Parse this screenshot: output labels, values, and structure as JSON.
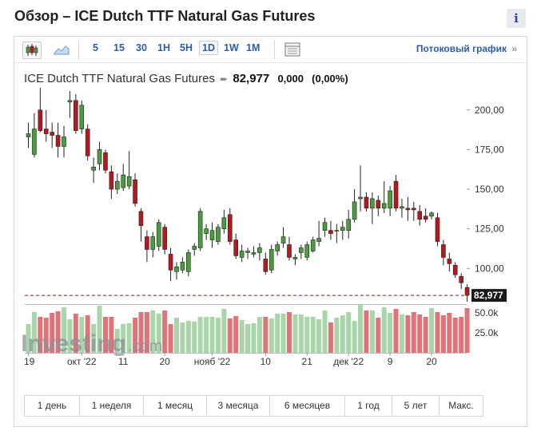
{
  "page": {
    "title": "Обзор – ICE Dutch TTF Natural Gas Futures",
    "info_label": "i"
  },
  "toolbar": {
    "intervals": [
      "5",
      "15",
      "30",
      "1H",
      "5H",
      "1D",
      "1W",
      "1M"
    ],
    "active_interval": "1D",
    "streaming_label": "Потоковый график"
  },
  "quote": {
    "name": "ICE Dutch TTF Natural Gas Futures",
    "last": "82,977",
    "change": "0,000",
    "change_pct": "(0,00%)"
  },
  "watermark": {
    "brand": "Investing",
    "suffix": ".com"
  },
  "ranges": [
    "1 день",
    "1 неделя",
    "1 месяц",
    "3 месяца",
    "6 месяцев",
    "1 год",
    "5 лет",
    "Макс."
  ],
  "colors": {
    "up": "#4a9c3c",
    "down": "#b5191f",
    "vol_up": "#a8d6a8",
    "vol_down": "#e07378",
    "accent": "#2a5db0"
  },
  "chart_data": {
    "type": "candlestick",
    "price_axis": {
      "ylim": [
        78,
        215
      ],
      "ticks": [
        100,
        125,
        150,
        175,
        200
      ],
      "tick_labels": [
        "100,00",
        "125,00",
        "150,00",
        "175,00",
        "200,00"
      ]
    },
    "volume_axis": {
      "ylim": [
        0,
        62
      ],
      "ticks": [
        25,
        50
      ],
      "tick_labels": [
        "25.0k",
        "50.0k"
      ]
    },
    "last_price": 82.977,
    "last_price_label": "82,977",
    "x_labels": [
      {
        "index": 0,
        "label": "19"
      },
      {
        "index": 9,
        "label": "окт '22"
      },
      {
        "index": 16,
        "label": "11"
      },
      {
        "index": 23,
        "label": "20"
      },
      {
        "index": 31,
        "label": "нояб '22"
      },
      {
        "index": 40,
        "label": "10"
      },
      {
        "index": 47,
        "label": "21"
      },
      {
        "index": 54,
        "label": "дек '22"
      },
      {
        "index": 61,
        "label": "9"
      },
      {
        "index": 68,
        "label": "20"
      }
    ],
    "candles": [
      {
        "o": 183,
        "h": 192,
        "l": 176,
        "c": 185,
        "v": 36
      },
      {
        "o": 172,
        "h": 198,
        "l": 170,
        "c": 188,
        "v": 51
      },
      {
        "o": 200,
        "h": 214,
        "l": 186,
        "c": 187,
        "v": 45
      },
      {
        "o": 188,
        "h": 200,
        "l": 180,
        "c": 185,
        "v": 44
      },
      {
        "o": 186,
        "h": 192,
        "l": 176,
        "c": 184,
        "v": 50
      },
      {
        "o": 184,
        "h": 192,
        "l": 170,
        "c": 177,
        "v": 52
      },
      {
        "o": 177,
        "h": 190,
        "l": 170,
        "c": 183,
        "v": 57
      },
      {
        "o": 205,
        "h": 212,
        "l": 195,
        "c": 206,
        "v": 42
      },
      {
        "o": 206,
        "h": 210,
        "l": 185,
        "c": 187,
        "v": 49
      },
      {
        "o": 188,
        "h": 206,
        "l": 185,
        "c": 203,
        "v": 45
      },
      {
        "o": 188,
        "h": 191,
        "l": 168,
        "c": 171,
        "v": 47
      },
      {
        "o": 162,
        "h": 170,
        "l": 154,
        "c": 164,
        "v": 36
      },
      {
        "o": 166,
        "h": 180,
        "l": 162,
        "c": 175,
        "v": 59
      },
      {
        "o": 173,
        "h": 175,
        "l": 160,
        "c": 162,
        "v": 45
      },
      {
        "o": 161,
        "h": 165,
        "l": 144,
        "c": 150,
        "v": 45
      },
      {
        "o": 150,
        "h": 160,
        "l": 147,
        "c": 155,
        "v": 30
      },
      {
        "o": 151,
        "h": 166,
        "l": 149,
        "c": 159,
        "v": 36
      },
      {
        "o": 152,
        "h": 174,
        "l": 150,
        "c": 158,
        "v": 37
      },
      {
        "o": 156,
        "h": 160,
        "l": 139,
        "c": 141,
        "v": 44
      },
      {
        "o": 136,
        "h": 138,
        "l": 117,
        "c": 127,
        "v": 51
      },
      {
        "o": 120,
        "h": 124,
        "l": 104,
        "c": 112,
        "v": 51
      },
      {
        "o": 112,
        "h": 123,
        "l": 107,
        "c": 120,
        "v": 53
      },
      {
        "o": 114,
        "h": 131,
        "l": 111,
        "c": 129,
        "v": 49
      },
      {
        "o": 126,
        "h": 128,
        "l": 109,
        "c": 112,
        "v": 53
      },
      {
        "o": 109,
        "h": 113,
        "l": 92,
        "c": 99,
        "v": 36
      },
      {
        "o": 98,
        "h": 104,
        "l": 93,
        "c": 101,
        "v": 44
      },
      {
        "o": 99,
        "h": 107,
        "l": 97,
        "c": 104,
        "v": 38
      },
      {
        "o": 98,
        "h": 112,
        "l": 95,
        "c": 110,
        "v": 40
      },
      {
        "o": 112,
        "h": 116,
        "l": 108,
        "c": 114,
        "v": 39
      },
      {
        "o": 113,
        "h": 138,
        "l": 111,
        "c": 136,
        "v": 45
      },
      {
        "o": 122,
        "h": 128,
        "l": 118,
        "c": 125,
        "v": 45
      },
      {
        "o": 118,
        "h": 129,
        "l": 113,
        "c": 124,
        "v": 45
      },
      {
        "o": 117,
        "h": 128,
        "l": 115,
        "c": 126,
        "v": 44
      },
      {
        "o": 125,
        "h": 137,
        "l": 122,
        "c": 132,
        "v": 55
      },
      {
        "o": 134,
        "h": 138,
        "l": 115,
        "c": 117,
        "v": 43
      },
      {
        "o": 118,
        "h": 122,
        "l": 106,
        "c": 108,
        "v": 46
      },
      {
        "o": 107,
        "h": 115,
        "l": 104,
        "c": 111,
        "v": 41
      },
      {
        "o": 110,
        "h": 113,
        "l": 106,
        "c": 111,
        "v": 36
      },
      {
        "o": 109,
        "h": 114,
        "l": 107,
        "c": 110,
        "v": 37
      },
      {
        "o": 110,
        "h": 116,
        "l": 105,
        "c": 113,
        "v": 45
      },
      {
        "o": 106,
        "h": 110,
        "l": 96,
        "c": 98,
        "v": 45
      },
      {
        "o": 99,
        "h": 115,
        "l": 97,
        "c": 112,
        "v": 43
      },
      {
        "o": 111,
        "h": 117,
        "l": 108,
        "c": 115,
        "v": 49
      },
      {
        "o": 116,
        "h": 126,
        "l": 113,
        "c": 120,
        "v": 49
      },
      {
        "o": 115,
        "h": 120,
        "l": 105,
        "c": 107,
        "v": 51
      },
      {
        "o": 106,
        "h": 109,
        "l": 102,
        "c": 107,
        "v": 48
      },
      {
        "o": 110,
        "h": 115,
        "l": 106,
        "c": 113,
        "v": 48
      },
      {
        "o": 107,
        "h": 117,
        "l": 105,
        "c": 115,
        "v": 45
      },
      {
        "o": 111,
        "h": 120,
        "l": 110,
        "c": 118,
        "v": 45
      },
      {
        "o": 117,
        "h": 130,
        "l": 114,
        "c": 119,
        "v": 42
      },
      {
        "o": 124,
        "h": 132,
        "l": 120,
        "c": 129,
        "v": 53
      },
      {
        "o": 124,
        "h": 130,
        "l": 118,
        "c": 122,
        "v": 38
      },
      {
        "o": 124,
        "h": 128,
        "l": 116,
        "c": 124,
        "v": 44
      },
      {
        "o": 124,
        "h": 130,
        "l": 118,
        "c": 126,
        "v": 47
      },
      {
        "o": 124,
        "h": 137,
        "l": 119,
        "c": 131,
        "v": 51
      },
      {
        "o": 131,
        "h": 150,
        "l": 129,
        "c": 142,
        "v": 40
      },
      {
        "o": 144,
        "h": 165,
        "l": 136,
        "c": 145,
        "v": 61
      },
      {
        "o": 145,
        "h": 148,
        "l": 136,
        "c": 138,
        "v": 53
      },
      {
        "o": 138,
        "h": 148,
        "l": 128,
        "c": 144,
        "v": 53
      },
      {
        "o": 143,
        "h": 146,
        "l": 133,
        "c": 138,
        "v": 44
      },
      {
        "o": 138,
        "h": 155,
        "l": 135,
        "c": 141,
        "v": 57
      },
      {
        "o": 138,
        "h": 152,
        "l": 133,
        "c": 149,
        "v": 50
      },
      {
        "o": 155,
        "h": 159,
        "l": 136,
        "c": 138,
        "v": 55
      },
      {
        "o": 138,
        "h": 144,
        "l": 132,
        "c": 139,
        "v": 48
      },
      {
        "o": 138,
        "h": 145,
        "l": 130,
        "c": 137,
        "v": 47
      },
      {
        "o": 138,
        "h": 142,
        "l": 130,
        "c": 137,
        "v": 51
      },
      {
        "o": 136,
        "h": 140,
        "l": 127,
        "c": 131,
        "v": 48
      },
      {
        "o": 133,
        "h": 138,
        "l": 129,
        "c": 131,
        "v": 45
      },
      {
        "o": 133,
        "h": 136,
        "l": 131,
        "c": 135,
        "v": 56
      },
      {
        "o": 132,
        "h": 135,
        "l": 114,
        "c": 117,
        "v": 51
      },
      {
        "o": 115,
        "h": 118,
        "l": 102,
        "c": 107,
        "v": 47
      },
      {
        "o": 106,
        "h": 110,
        "l": 98,
        "c": 103,
        "v": 50
      },
      {
        "o": 102,
        "h": 104,
        "l": 94,
        "c": 96,
        "v": 44
      },
      {
        "o": 95,
        "h": 97,
        "l": 87,
        "c": 91,
        "v": 45
      },
      {
        "o": 88,
        "h": 90,
        "l": 79,
        "c": 83,
        "v": 56
      }
    ]
  }
}
